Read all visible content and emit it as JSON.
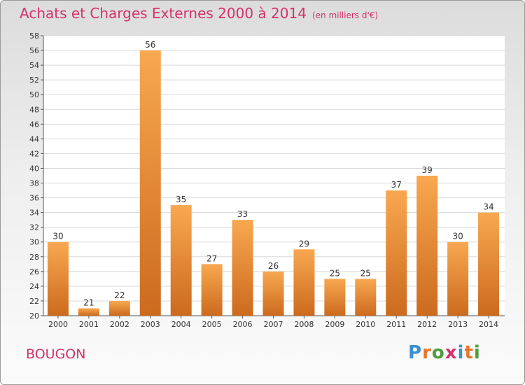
{
  "title": "Achats et Charges Externes 2000 à 2014",
  "unit": "(en milliers d'€)",
  "commune": "BOUGON",
  "logo_text": "Proxiti",
  "colors": {
    "title": "#d4326c",
    "bar_light": "#f8a850",
    "bar_dark": "#cc6a1e",
    "grid": "#d8d8d8"
  },
  "chart_data": {
    "type": "bar",
    "categories": [
      "2000",
      "2001",
      "2002",
      "2003",
      "2004",
      "2005",
      "2006",
      "2007",
      "2008",
      "2009",
      "2010",
      "2011",
      "2012",
      "2013",
      "2014"
    ],
    "values": [
      30,
      21,
      22,
      56,
      35,
      27,
      33,
      26,
      29,
      25,
      25,
      37,
      39,
      30,
      34
    ],
    "title": "Achats et Charges Externes 2000 à 2014",
    "xlabel": "",
    "ylabel": "",
    "ylim": [
      20,
      58
    ],
    "ytick_step": 2,
    "grid": true,
    "data_labels": true
  }
}
